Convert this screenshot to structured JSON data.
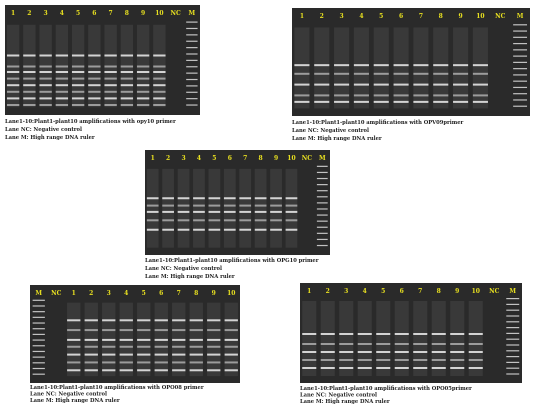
{
  "panels": [
    {
      "lanes": [
        "1",
        "2",
        "3",
        "4",
        "5",
        "6",
        "7",
        "8",
        "9",
        "10",
        "NC",
        "M"
      ],
      "caption": [
        "Lane1-10:Plant1-plant10 amplifications with opy10 primer",
        "Lane NC: Negative control",
        "Lane M: High range DNA ruler"
      ]
    },
    {
      "lanes": [
        "1",
        "2",
        "3",
        "4",
        "5",
        "6",
        "7",
        "8",
        "9",
        "10",
        "NC",
        "M"
      ],
      "caption": [
        "Lane1-10:Plant1-plant10 amplifications with OPV09primer",
        "Lane NC: Negative control",
        "Lane M: High range DNA ruler"
      ]
    },
    {
      "lanes": [
        "1",
        "2",
        "3",
        "4",
        "5",
        "6",
        "7",
        "8",
        "9",
        "10",
        "NC",
        "M"
      ],
      "caption": [
        "Lane1-10:Plant1-plant10 amplifications with OPG10 primer",
        "Lane NC: Negative control",
        "Lane M: High range DNA ruler"
      ]
    },
    {
      "lanes": [
        "M",
        "NC",
        "1",
        "2",
        "3",
        "4",
        "5",
        "6",
        "7",
        "8",
        "9",
        "10"
      ],
      "caption": [
        "Lane1-10:Plant1-plant10 amplifications with OPO08 primer",
        "Lane NC: Negative control",
        "Lane M: High range DNA ruler"
      ]
    },
    {
      "lanes": [
        "1",
        "2",
        "3",
        "4",
        "5",
        "6",
        "7",
        "8",
        "9",
        "10",
        "NC",
        "M"
      ],
      "caption": [
        "Lane1-10:Plant1-plant10 amplifications with OPO05primer",
        "Lane NC: Negative control",
        "Lane M: High range DNA ruler"
      ]
    }
  ]
}
